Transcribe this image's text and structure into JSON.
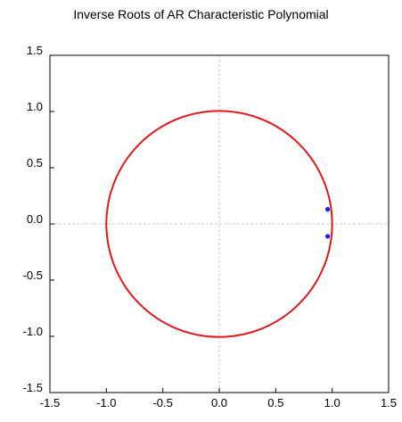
{
  "chart_data": {
    "type": "scatter",
    "title": "Inverse Roots of AR Characteristic Polynomial",
    "xlabel": "",
    "ylabel": "",
    "xlim": [
      -1.5,
      1.5
    ],
    "ylim": [
      -1.5,
      1.5
    ],
    "x_ticks": [
      "-1.5",
      "-1.0",
      "-0.5",
      "0.0",
      "0.5",
      "1.0",
      "1.5"
    ],
    "y_ticks": [
      "1.5",
      "1.0",
      "0.5",
      "0.0",
      "-0.5",
      "-1.0",
      "-1.5"
    ],
    "grid": "zero lines only",
    "unit_circle": {
      "radius": 1.0,
      "color": "#e01818"
    },
    "points": [
      {
        "x": 0.96,
        "y": 0.13
      },
      {
        "x": 0.96,
        "y": -0.11
      }
    ],
    "point_color": "#1a1aff"
  }
}
